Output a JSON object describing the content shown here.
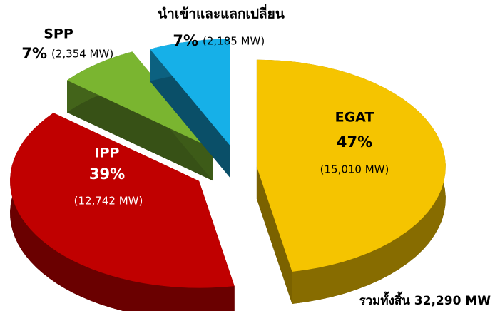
{
  "chart_data": {
    "type": "pie3d",
    "categories": [
      "EGAT",
      "IPP",
      "SPP",
      "นำเข้าและแลกเปลี่ยน"
    ],
    "values": [
      47,
      39,
      7,
      7
    ],
    "value_labels": [
      "47%",
      "39%",
      "7%",
      "7%"
    ],
    "mw_labels": [
      "(15,010 MW)",
      "(12,742 MW)",
      "(2,354 MW)",
      "(2,185 MW)"
    ],
    "colors": [
      "#f5c400",
      "#c00000",
      "#7ab530",
      "#16b0e8"
    ],
    "annotation": "รวมทั้งสิ้น 32,290 MW"
  }
}
